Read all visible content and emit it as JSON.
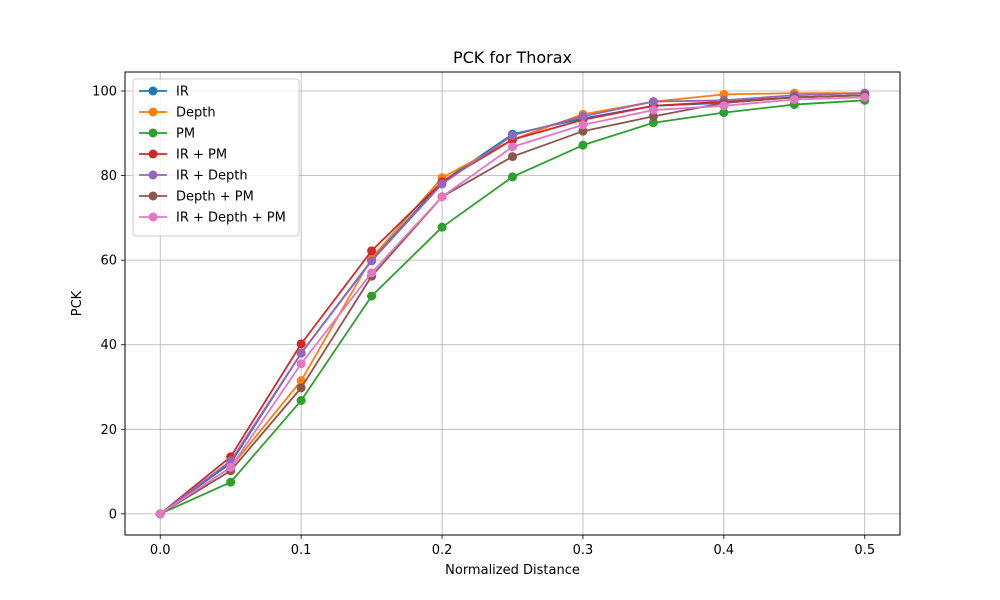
{
  "chart_data": {
    "type": "line",
    "title": "PCK for Thorax",
    "xlabel": "Normalized Distance",
    "ylabel": "PCK",
    "xlim": [
      -0.025,
      0.525
    ],
    "ylim": [
      -5,
      104.5
    ],
    "xticks": [
      0.0,
      0.1,
      0.2,
      0.3,
      0.4,
      0.5
    ],
    "xtick_labels": [
      "0.0",
      "0.1",
      "0.2",
      "0.3",
      "0.4",
      "0.5"
    ],
    "yticks": [
      0,
      20,
      40,
      60,
      80,
      100
    ],
    "ytick_labels": [
      "0",
      "20",
      "40",
      "60",
      "80",
      "100"
    ],
    "grid": true,
    "legend_position": "top-left",
    "x": [
      0.0,
      0.05,
      0.1,
      0.15,
      0.2,
      0.25,
      0.3,
      0.35,
      0.4,
      0.45,
      0.5
    ],
    "series": [
      {
        "name": "IR",
        "color": "#1f77b4",
        "values": [
          0,
          12,
          38,
          60,
          78.5,
          89.8,
          93.5,
          96.5,
          97.2,
          98.5,
          99.0
        ]
      },
      {
        "name": "Depth",
        "color": "#ff7f0e",
        "values": [
          0,
          11,
          31.5,
          60.5,
          79.5,
          88.5,
          94.5,
          97.5,
          99.2,
          99.5,
          99.5
        ]
      },
      {
        "name": "PM",
        "color": "#2ca02c",
        "values": [
          0,
          7.5,
          26.8,
          51.5,
          67.8,
          79.7,
          87.2,
          92.5,
          94.9,
          96.8,
          97.8
        ]
      },
      {
        "name": "IR + PM",
        "color": "#d62728",
        "values": [
          0,
          13.5,
          40.2,
          62.2,
          78.5,
          88.5,
          93.2,
          96.5,
          97.5,
          98.5,
          99.0
        ]
      },
      {
        "name": "IR + Depth",
        "color": "#9467bd",
        "values": [
          0,
          12.5,
          38.0,
          59.8,
          78.0,
          89.5,
          94.0,
          97.5,
          97.8,
          99.0,
          99.5
        ]
      },
      {
        "name": "Depth + PM",
        "color": "#8c564b",
        "values": [
          0,
          10.2,
          29.8,
          56.2,
          75.0,
          84.5,
          90.5,
          94.0,
          97.2,
          98.5,
          99.0
        ]
      },
      {
        "name": "IR + Depth + PM",
        "color": "#e377c2",
        "values": [
          0,
          11.0,
          35.5,
          57.0,
          75.0,
          86.8,
          92.0,
          95.5,
          96.5,
          98.0,
          98.5
        ]
      }
    ]
  }
}
